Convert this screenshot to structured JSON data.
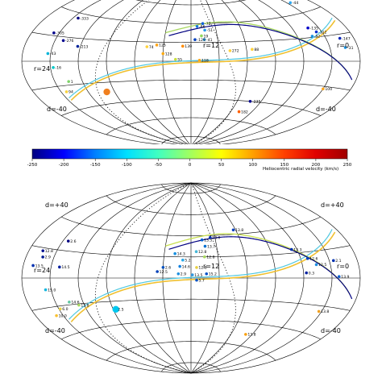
{
  "chart_data": [
    {
      "type": "scatter",
      "projection": "aitoff",
      "panel": "top",
      "labels": {
        "d_top": "",
        "d_bottom": "d=-40",
        "r_left": "r=24",
        "r_center": "r=12",
        "r_right": "r=0"
      },
      "points": [
        {
          "ra": 21.6,
          "dec": 36,
          "label": "-333",
          "color": "#000080"
        },
        {
          "ra": 22.4,
          "dec": 22,
          "label": "-305",
          "color": "#00008b"
        },
        {
          "ra": 21.4,
          "dec": 17,
          "label": "-276",
          "color": "#000090"
        },
        {
          "ra": 20.2,
          "dec": 13,
          "label": "-213",
          "color": "#00229a"
        },
        {
          "ra": 22.2,
          "dec": 6,
          "label": "-43",
          "color": "#00b4d8"
        },
        {
          "ra": 21.8,
          "dec": -5,
          "label": "-16",
          "color": "#00c8c8"
        },
        {
          "ra": 21.0,
          "dec": -17,
          "label": "1",
          "color": "#7fd36a"
        },
        {
          "ra": 21.6,
          "dec": -25,
          "label": "94",
          "color": "#f7d23a"
        },
        {
          "ra": 18.6,
          "dec": -29,
          "label": "",
          "color": "#f07f1e",
          "size": "large"
        },
        {
          "ra": 15.2,
          "dec": 15,
          "label": "74",
          "color": "#ffd23a"
        },
        {
          "ra": 14.5,
          "dec": 17,
          "label": "125",
          "color": "#ffa61a"
        },
        {
          "ra": 12.6,
          "dec": 16,
          "label": "139",
          "color": "#ff8a00"
        },
        {
          "ra": 14.0,
          "dec": 8,
          "label": "128",
          "color": "#ffaa10"
        },
        {
          "ra": 13.1,
          "dec": 2,
          "label": "55",
          "color": "#c8e03c"
        },
        {
          "ra": 11.4,
          "dec": 1,
          "label": "118",
          "color": "#ffa51a"
        },
        {
          "ra": 11.0,
          "dec": 40,
          "label": "-72",
          "color": "#1060d8"
        },
        {
          "ra": 11.5,
          "dec": 37,
          "label": "-66",
          "color": "#1878e0"
        },
        {
          "ra": 10.9,
          "dec": 33,
          "label": "-51",
          "color": "#2498e8"
        },
        {
          "ra": 11.2,
          "dec": 27,
          "label": "19",
          "color": "#90d85a"
        },
        {
          "ra": 11.0,
          "dec": 23,
          "label": "-41",
          "color": "#30a8f0"
        },
        {
          "ra": 11.7,
          "dec": 23,
          "label": "-129",
          "color": "#0040c0"
        },
        {
          "ra": 9.2,
          "dec": 11,
          "label": "272",
          "color": "#ffd23c"
        },
        {
          "ra": 7.6,
          "dec": 12,
          "label": "88",
          "color": "#ffd23c"
        },
        {
          "ra": 2.8,
          "dec": 28,
          "label": "-135",
          "color": "#0000c8"
        },
        {
          "ra": 2.4,
          "dec": 24,
          "label": "-112",
          "color": "#0030d0"
        },
        {
          "ra": 2.9,
          "dec": 21,
          "label": "-52",
          "color": "#1890e0"
        },
        {
          "ra": 1.0,
          "dec": 17,
          "label": "-147",
          "color": "#0020b8"
        },
        {
          "ra": 0.9,
          "dec": 10,
          "label": "-31",
          "color": "#1890e0"
        },
        {
          "ra": 1.7,
          "dec": 49,
          "label": "-44",
          "color": "#30a8f0"
        },
        {
          "ra": 2.0,
          "dec": -22,
          "label": "100",
          "color": "#ffa51a"
        },
        {
          "ra": 6.9,
          "dec": -40,
          "label": "-235",
          "color": "#000090"
        },
        {
          "ra": 7.2,
          "dec": -51,
          "label": "182",
          "color": "#ff6000"
        }
      ]
    },
    {
      "type": "scatter",
      "projection": "aitoff",
      "panel": "bottom",
      "labels": {
        "d_top": "d=+40",
        "d_bottom": "d=-40",
        "r_left": "r=24",
        "r_center": "r=12",
        "r_right": "r=0"
      },
      "points": [
        {
          "ra": 21.6,
          "dec": 27,
          "label": "2.6",
          "color": "#000080"
        },
        {
          "ra": 23.0,
          "dec": 18,
          "label": "12.8",
          "color": "#001090"
        },
        {
          "ra": 22.8,
          "dec": 14,
          "label": "2.9",
          "color": "#001890"
        },
        {
          "ra": 21.4,
          "dec": 8,
          "label": "14.5",
          "color": "#0020a0"
        },
        {
          "ra": 23.3,
          "dec": 8,
          "label": "13.5",
          "color": "#0030b0"
        },
        {
          "ra": 22.4,
          "dec": -8,
          "label": "15.0",
          "color": "#18b8e0"
        },
        {
          "ra": 21.0,
          "dec": -18,
          "label": "14.6",
          "color": "#60c8a0"
        },
        {
          "ra": 20.4,
          "dec": -21,
          "label": "13.8",
          "color": "#a8d860"
        },
        {
          "ra": 21.9,
          "dec": -22,
          "label": "6.0",
          "color": "#e8d040"
        },
        {
          "ra": 22.5,
          "dec": -26,
          "label": "10.0",
          "color": "#f8c030"
        },
        {
          "ra": 17.8,
          "dec": -27,
          "label": "2.5",
          "color": "#00c8f0",
          "size": "large"
        },
        {
          "ra": 10.4,
          "dec": 38,
          "label": "13.0",
          "color": "#0030b0"
        },
        {
          "ra": 13.2,
          "dec": 23,
          "label": "14.3",
          "color": "#1890e0"
        },
        {
          "ra": 12.6,
          "dec": 17,
          "label": "5.2",
          "color": "#28a8e8"
        },
        {
          "ra": 11.1,
          "dec": 36,
          "label": "13.5",
          "color": "#0060d0"
        },
        {
          "ra": 10.9,
          "dec": 30,
          "label": "13.7",
          "color": "#0070d0"
        },
        {
          "ra": 11.6,
          "dec": 25,
          "label": "12.8",
          "color": "#48b8d8"
        },
        {
          "ra": 11.0,
          "dec": 20,
          "label": "12.8",
          "color": "#a8d860"
        },
        {
          "ra": 11.6,
          "dec": 10,
          "label": "12.8",
          "color": "#e8d040"
        },
        {
          "ra": 12.8,
          "dec": 11,
          "label": "14.6",
          "color": "#1080e0"
        },
        {
          "ra": 14.0,
          "dec": 10,
          "label": "2.6",
          "color": "#0050c0"
        },
        {
          "ra": 14.4,
          "dec": 6,
          "label": "12.5",
          "color": "#0040b8"
        },
        {
          "ra": 12.9,
          "dec": 4,
          "label": "2.9",
          "color": "#2090e0"
        },
        {
          "ra": 11.9,
          "dec": 3,
          "label": "13.5",
          "color": "#3098e0"
        },
        {
          "ra": 11.6,
          "dec": -2,
          "label": "5.7",
          "color": "#0050c8"
        },
        {
          "ra": 10.9,
          "dec": 4,
          "label": "15.2",
          "color": "#0050c8"
        },
        {
          "ra": 8.2,
          "dec": 44,
          "label": "13.8",
          "color": "#0040c0"
        },
        {
          "ra": 4.4,
          "dec": 23,
          "label": "13.3",
          "color": "#0030b0"
        },
        {
          "ra": 3.5,
          "dec": 15,
          "label": "12.6",
          "color": "#0040c0"
        },
        {
          "ra": 3.0,
          "dec": 10,
          "label": "12.5",
          "color": "#2090e0"
        },
        {
          "ra": 1.7,
          "dec": 12,
          "label": "2.1",
          "color": "#0030b0"
        },
        {
          "ra": 1.5,
          "dec": 1,
          "label": "13.9",
          "color": "#1060d0"
        },
        {
          "ra": 3.8,
          "dec": 4,
          "label": "0.3",
          "color": "#0020a0"
        },
        {
          "ra": 2.2,
          "dec": -24,
          "label": "13.8",
          "color": "#f0a020"
        },
        {
          "ra": 6.6,
          "dec": -50,
          "label": "13.8",
          "color": "#f8a010"
        }
      ]
    }
  ],
  "colorbar": {
    "ticks": [
      "-250",
      "-200",
      "-150",
      "-100",
      "-50",
      "0",
      "50",
      "100",
      "150",
      "200",
      "250"
    ],
    "range": [
      -250,
      250
    ],
    "label": "Heliocentric radial velocity (km/s)",
    "colors": [
      "#000080",
      "#0000ff",
      "#0080ff",
      "#00e0ff",
      "#40ffc0",
      "#a0ff60",
      "#ffff00",
      "#ffa000",
      "#ff4000",
      "#e00000",
      "#a00000"
    ]
  }
}
